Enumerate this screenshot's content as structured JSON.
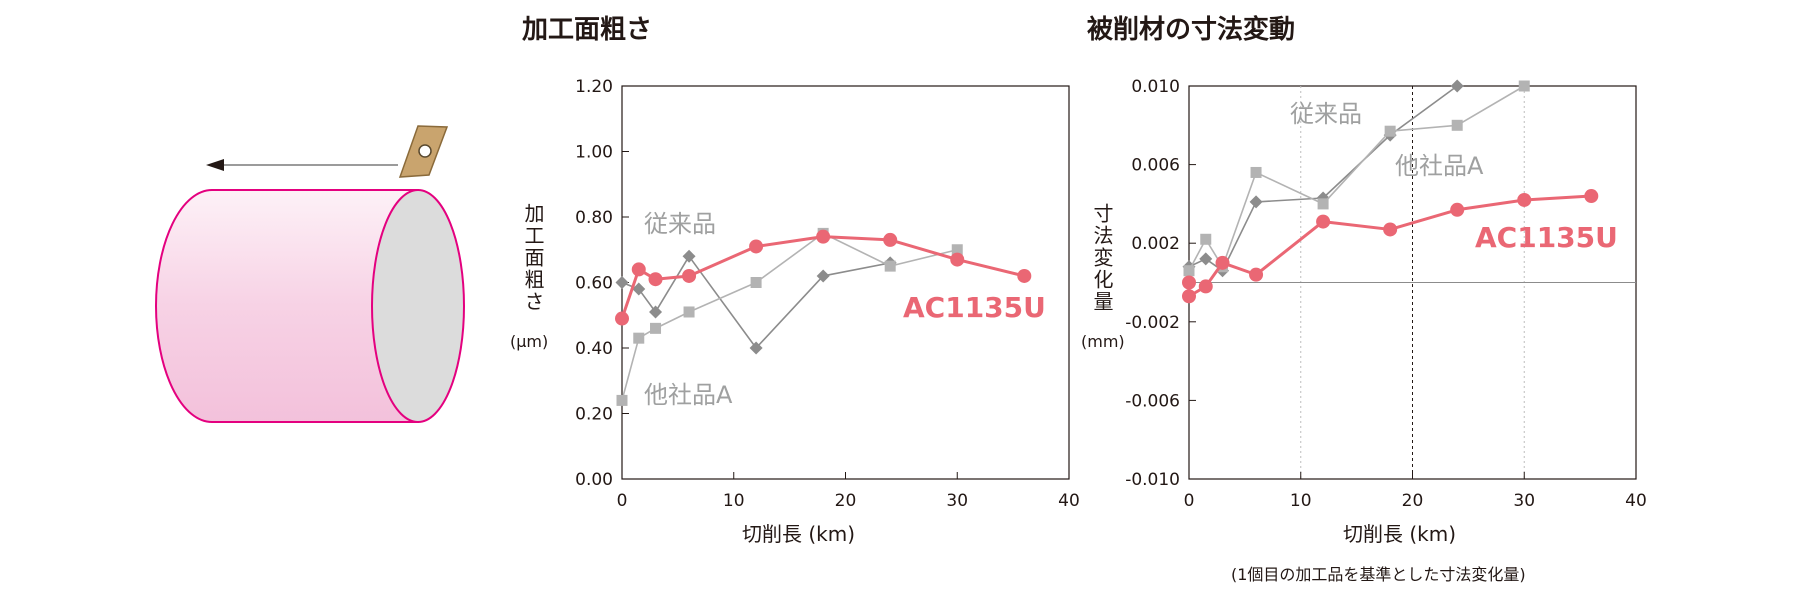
{
  "colors": {
    "ac1135u": "#ea6774",
    "conventional": "#8c8c8c",
    "competitor_a": "#b3b3b3",
    "workpiece_edge": "#e4007f",
    "insert": "#c9a46e",
    "frame": "#231815"
  },
  "illustration": {
    "icons": [
      "feed-arrow-icon",
      "cutting-insert-icon",
      "workpiece-cylinder-icon"
    ]
  },
  "chart_data": [
    {
      "type": "line",
      "title": "加工面粗さ",
      "xlabel": "切削長 (km)",
      "ylabel": "加工面粗さ",
      "yunit": "(μm)",
      "xlim": [
        0,
        40
      ],
      "ylim": [
        0,
        1.2
      ],
      "xticks": [
        "0",
        "10",
        "20",
        "30",
        "40"
      ],
      "yticks": [
        "0.00",
        "0.20",
        "0.40",
        "0.60",
        "0.80",
        "1.00",
        "1.20"
      ],
      "grid": false,
      "series": [
        {
          "name": "従来品",
          "marker": "diamond",
          "x": [
            0,
            1.5,
            3,
            6,
            12,
            18,
            24
          ],
          "y": [
            0.6,
            0.58,
            0.51,
            0.68,
            0.4,
            0.62,
            0.66
          ]
        },
        {
          "name": "他社品A",
          "marker": "square",
          "x": [
            0,
            1.5,
            3,
            6,
            12,
            18,
            24,
            30
          ],
          "y": [
            0.24,
            0.43,
            0.46,
            0.51,
            0.6,
            0.75,
            0.65,
            0.7
          ]
        },
        {
          "name": "AC1135U",
          "marker": "circle",
          "x": [
            0,
            1.5,
            3,
            6,
            12,
            18,
            24,
            30,
            36
          ],
          "y": [
            0.49,
            0.64,
            0.61,
            0.62,
            0.71,
            0.74,
            0.73,
            0.67,
            0.62
          ]
        }
      ]
    },
    {
      "type": "line",
      "title": "被削材の寸法変動",
      "xlabel": "切削長 (km)",
      "ylabel": "寸法変化量",
      "yunit": "(mm)",
      "xlim": [
        0,
        40
      ],
      "ylim": [
        -0.01,
        0.01
      ],
      "xticks": [
        "0",
        "10",
        "20",
        "30",
        "40"
      ],
      "yticks": [
        "-0.010",
        "-0.006",
        "-0.002",
        "0.002",
        "0.006",
        "0.010"
      ],
      "grid": true,
      "reference_line": 0,
      "note": "(1個目の加工品を基準とした寸法変化量)",
      "series": [
        {
          "name": "従来品",
          "marker": "diamond",
          "x": [
            0,
            1.5,
            3,
            6,
            12,
            18,
            24
          ],
          "y": [
            0.0008,
            0.0012,
            0.0006,
            0.0041,
            0.0043,
            0.0075,
            0.01
          ]
        },
        {
          "name": "他社品A",
          "marker": "square",
          "x": [
            0,
            1.5,
            3,
            6,
            12,
            18,
            24,
            30
          ],
          "y": [
            0.0006,
            0.0022,
            0.0008,
            0.0056,
            0.004,
            0.0077,
            0.008,
            0.01
          ]
        },
        {
          "name": "AC1135U",
          "marker": "circle",
          "x": [
            0,
            0,
            1.5,
            3,
            6,
            12,
            18,
            24,
            30,
            36
          ],
          "y": [
            0.0,
            -0.0007,
            -0.0002,
            0.001,
            0.0004,
            0.0031,
            0.0027,
            0.0037,
            0.0042,
            0.0044
          ]
        }
      ]
    }
  ]
}
